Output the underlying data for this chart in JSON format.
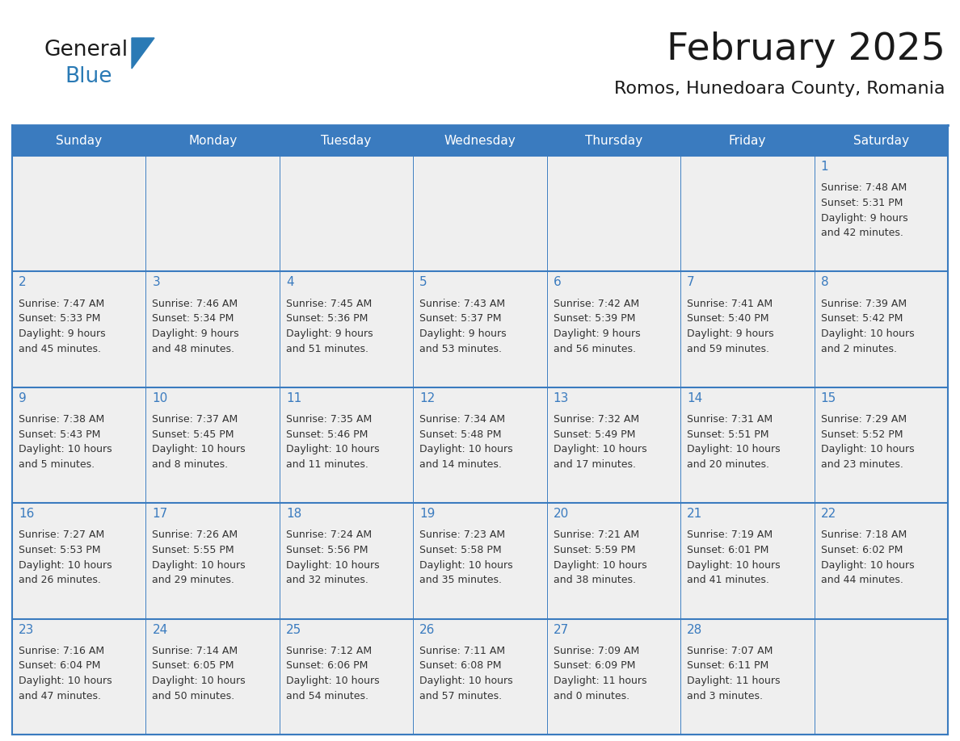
{
  "title": "February 2025",
  "subtitle": "Romos, Hunedoara County, Romania",
  "days_of_week": [
    "Sunday",
    "Monday",
    "Tuesday",
    "Wednesday",
    "Thursday",
    "Friday",
    "Saturday"
  ],
  "header_bg": "#3a7bbf",
  "header_text": "#ffffff",
  "cell_bg": "#efefef",
  "cell_border": "#3a7bbf",
  "title_color": "#1a1a1a",
  "subtitle_color": "#1a1a1a",
  "text_color": "#333333",
  "day_num_color": "#3a7bbf",
  "logo_general_color": "#1a1a1a",
  "logo_blue_color": "#2a7ab5",
  "calendar_data": [
    [
      null,
      null,
      null,
      null,
      null,
      null,
      {
        "day": 1,
        "sunrise": "7:48 AM",
        "sunset": "5:31 PM",
        "daylight": "9 hours",
        "daylight2": "and 42 minutes."
      }
    ],
    [
      {
        "day": 2,
        "sunrise": "7:47 AM",
        "sunset": "5:33 PM",
        "daylight": "9 hours",
        "daylight2": "and 45 minutes."
      },
      {
        "day": 3,
        "sunrise": "7:46 AM",
        "sunset": "5:34 PM",
        "daylight": "9 hours",
        "daylight2": "and 48 minutes."
      },
      {
        "day": 4,
        "sunrise": "7:45 AM",
        "sunset": "5:36 PM",
        "daylight": "9 hours",
        "daylight2": "and 51 minutes."
      },
      {
        "day": 5,
        "sunrise": "7:43 AM",
        "sunset": "5:37 PM",
        "daylight": "9 hours",
        "daylight2": "and 53 minutes."
      },
      {
        "day": 6,
        "sunrise": "7:42 AM",
        "sunset": "5:39 PM",
        "daylight": "9 hours",
        "daylight2": "and 56 minutes."
      },
      {
        "day": 7,
        "sunrise": "7:41 AM",
        "sunset": "5:40 PM",
        "daylight": "9 hours",
        "daylight2": "and 59 minutes."
      },
      {
        "day": 8,
        "sunrise": "7:39 AM",
        "sunset": "5:42 PM",
        "daylight": "10 hours",
        "daylight2": "and 2 minutes."
      }
    ],
    [
      {
        "day": 9,
        "sunrise": "7:38 AM",
        "sunset": "5:43 PM",
        "daylight": "10 hours",
        "daylight2": "and 5 minutes."
      },
      {
        "day": 10,
        "sunrise": "7:37 AM",
        "sunset": "5:45 PM",
        "daylight": "10 hours",
        "daylight2": "and 8 minutes."
      },
      {
        "day": 11,
        "sunrise": "7:35 AM",
        "sunset": "5:46 PM",
        "daylight": "10 hours",
        "daylight2": "and 11 minutes."
      },
      {
        "day": 12,
        "sunrise": "7:34 AM",
        "sunset": "5:48 PM",
        "daylight": "10 hours",
        "daylight2": "and 14 minutes."
      },
      {
        "day": 13,
        "sunrise": "7:32 AM",
        "sunset": "5:49 PM",
        "daylight": "10 hours",
        "daylight2": "and 17 minutes."
      },
      {
        "day": 14,
        "sunrise": "7:31 AM",
        "sunset": "5:51 PM",
        "daylight": "10 hours",
        "daylight2": "and 20 minutes."
      },
      {
        "day": 15,
        "sunrise": "7:29 AM",
        "sunset": "5:52 PM",
        "daylight": "10 hours",
        "daylight2": "and 23 minutes."
      }
    ],
    [
      {
        "day": 16,
        "sunrise": "7:27 AM",
        "sunset": "5:53 PM",
        "daylight": "10 hours",
        "daylight2": "and 26 minutes."
      },
      {
        "day": 17,
        "sunrise": "7:26 AM",
        "sunset": "5:55 PM",
        "daylight": "10 hours",
        "daylight2": "and 29 minutes."
      },
      {
        "day": 18,
        "sunrise": "7:24 AM",
        "sunset": "5:56 PM",
        "daylight": "10 hours",
        "daylight2": "and 32 minutes."
      },
      {
        "day": 19,
        "sunrise": "7:23 AM",
        "sunset": "5:58 PM",
        "daylight": "10 hours",
        "daylight2": "and 35 minutes."
      },
      {
        "day": 20,
        "sunrise": "7:21 AM",
        "sunset": "5:59 PM",
        "daylight": "10 hours",
        "daylight2": "and 38 minutes."
      },
      {
        "day": 21,
        "sunrise": "7:19 AM",
        "sunset": "6:01 PM",
        "daylight": "10 hours",
        "daylight2": "and 41 minutes."
      },
      {
        "day": 22,
        "sunrise": "7:18 AM",
        "sunset": "6:02 PM",
        "daylight": "10 hours",
        "daylight2": "and 44 minutes."
      }
    ],
    [
      {
        "day": 23,
        "sunrise": "7:16 AM",
        "sunset": "6:04 PM",
        "daylight": "10 hours",
        "daylight2": "and 47 minutes."
      },
      {
        "day": 24,
        "sunrise": "7:14 AM",
        "sunset": "6:05 PM",
        "daylight": "10 hours",
        "daylight2": "and 50 minutes."
      },
      {
        "day": 25,
        "sunrise": "7:12 AM",
        "sunset": "6:06 PM",
        "daylight": "10 hours",
        "daylight2": "and 54 minutes."
      },
      {
        "day": 26,
        "sunrise": "7:11 AM",
        "sunset": "6:08 PM",
        "daylight": "10 hours",
        "daylight2": "and 57 minutes."
      },
      {
        "day": 27,
        "sunrise": "7:09 AM",
        "sunset": "6:09 PM",
        "daylight": "11 hours",
        "daylight2": "and 0 minutes."
      },
      {
        "day": 28,
        "sunrise": "7:07 AM",
        "sunset": "6:11 PM",
        "daylight": "11 hours",
        "daylight2": "and 3 minutes."
      },
      null
    ]
  ]
}
